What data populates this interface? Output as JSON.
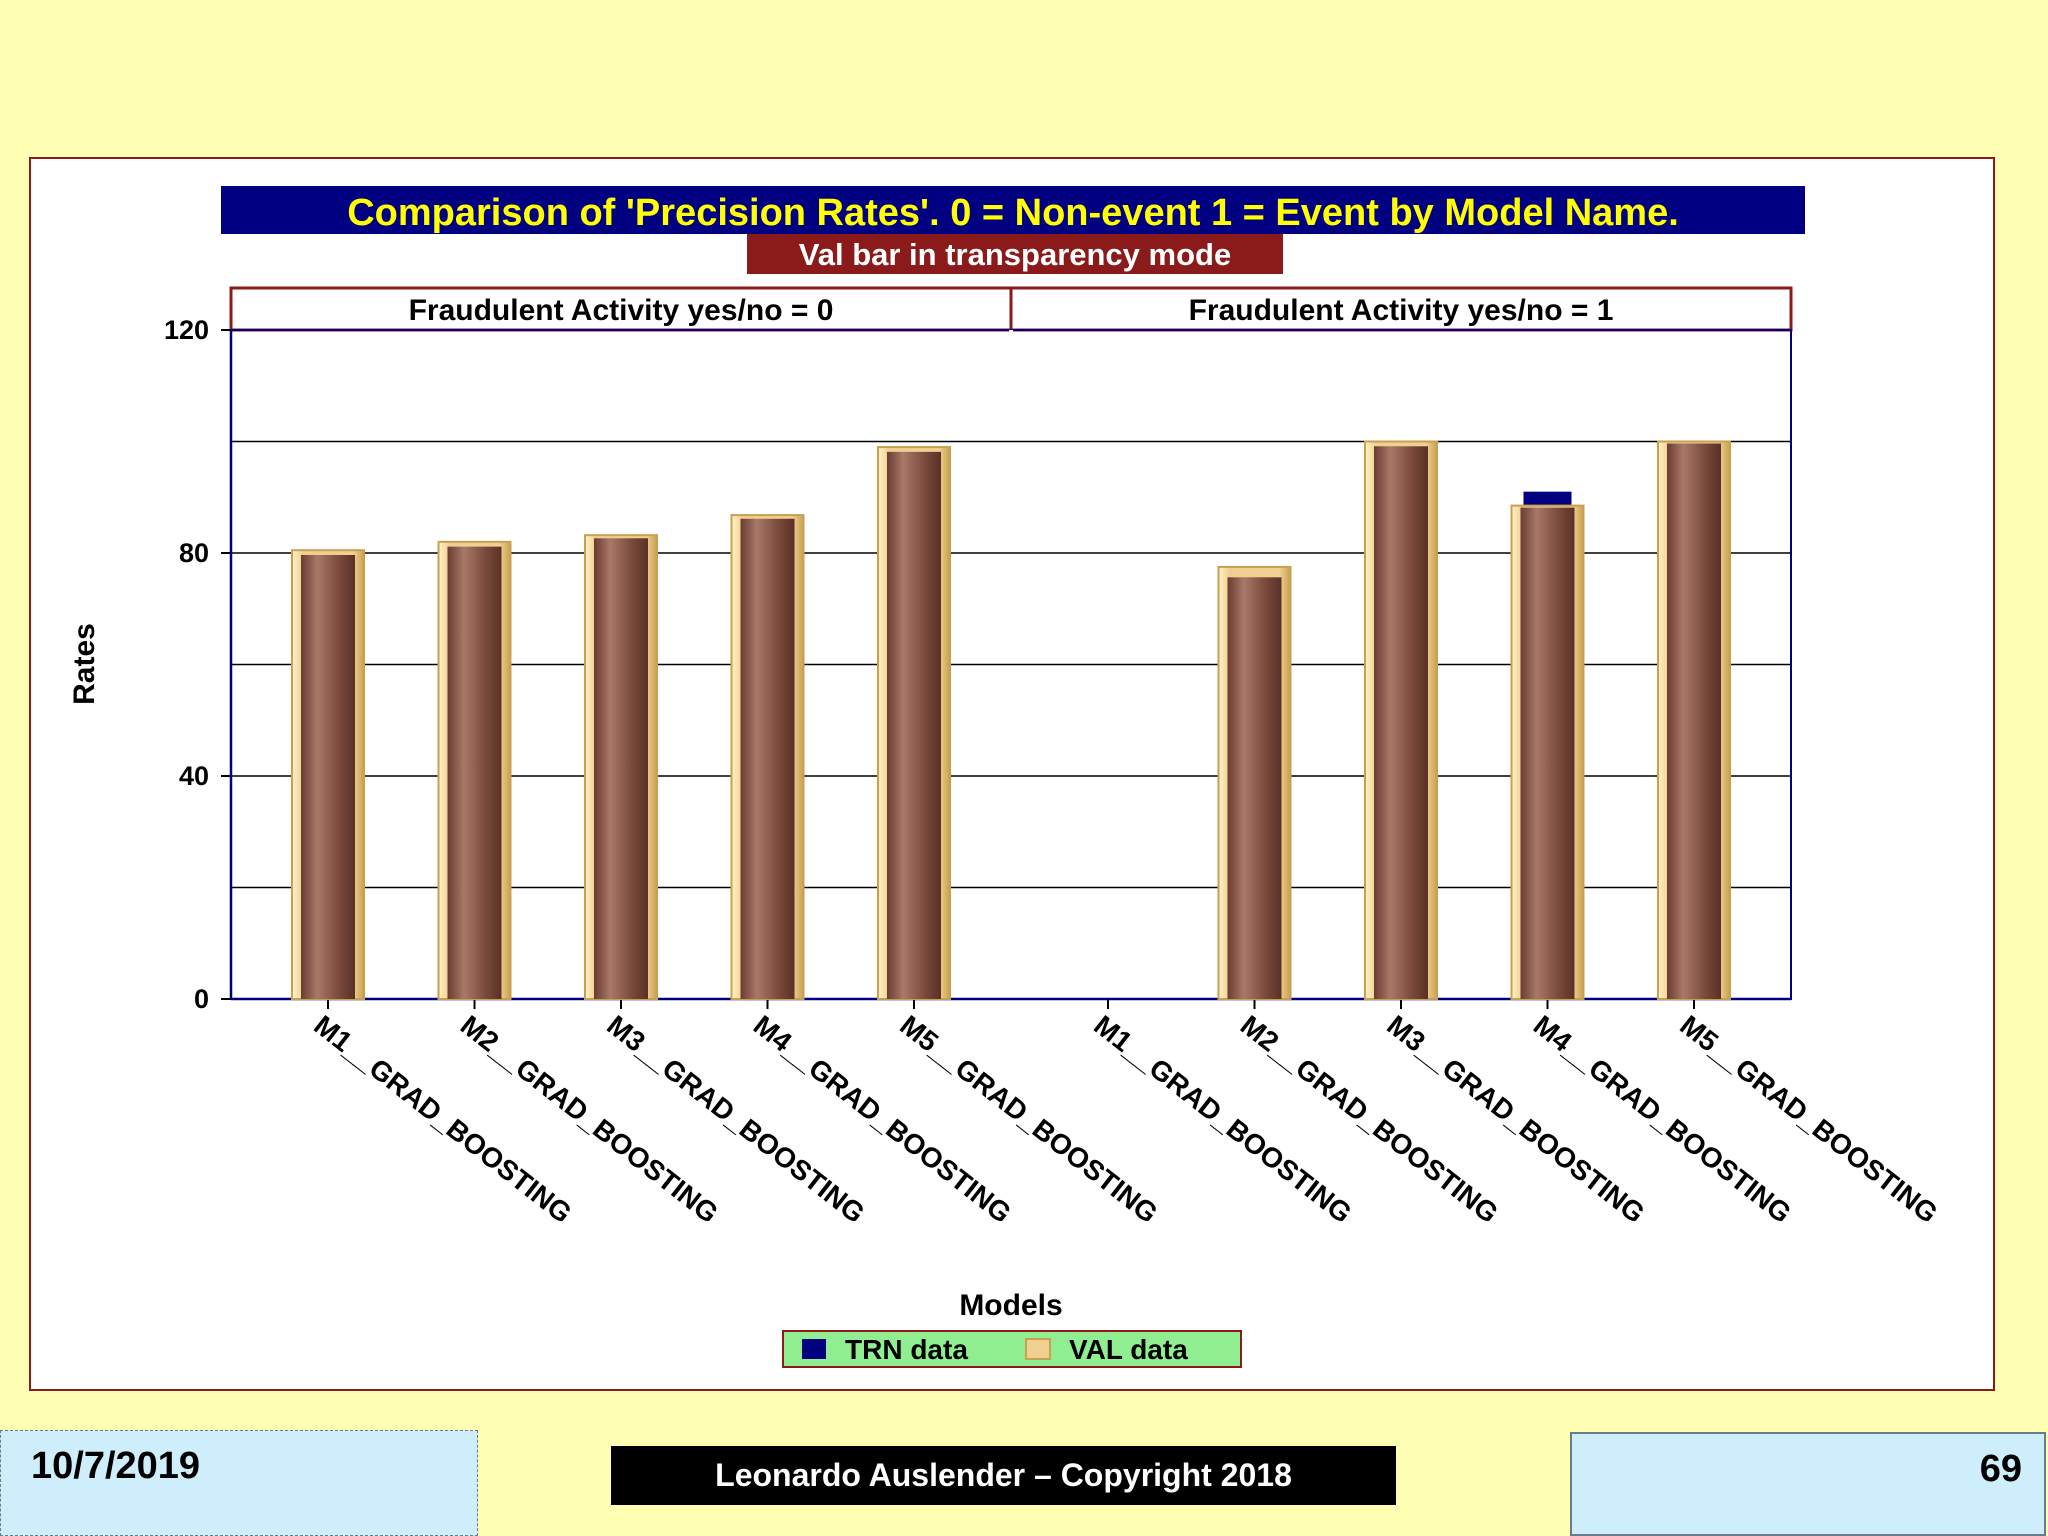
{
  "chart_data": {
    "type": "bar",
    "title": "Comparison of 'Precision Rates'. 0 = Non-event 1 = Event by Model Name.",
    "subtitle": "Val bar in transparency mode",
    "xlabel": "Models",
    "ylabel": "Rates",
    "ylim": [
      0,
      120
    ],
    "yticks": [
      0,
      40,
      80,
      120
    ],
    "grid": true,
    "categories": [
      "M1__GRAD_BOOSTING",
      "M2__GRAD_BOOSTING",
      "M3__GRAD_BOOSTING",
      "M4__GRAD_BOOSTING",
      "M5__GRAD_BOOSTING"
    ],
    "panels": [
      {
        "label": "Fraudulent Activity yes/no = 0",
        "series": [
          {
            "name": "TRN data",
            "values": [
              80,
              81.5,
              83,
              86.5,
              98.5
            ]
          },
          {
            "name": "VAL data",
            "values": [
              80.5,
              82,
              83.2,
              86.8,
              99
            ]
          }
        ]
      },
      {
        "label": "Fraudulent Activity yes/no = 1",
        "series": [
          {
            "name": "TRN data",
            "values": [
              0,
              76,
              99.5,
              91,
              100
            ]
          },
          {
            "name": "VAL data",
            "values": [
              0,
              77.5,
              100,
              88.5,
              100
            ]
          }
        ]
      }
    ],
    "legend": {
      "position": "bottom",
      "entries": [
        "TRN data",
        "VAL data"
      ]
    },
    "colors": {
      "trn_inner": "#7a4a3c",
      "trn_highlight": "#a87868",
      "trn_full": "#000080",
      "val_fill": "#f0d090",
      "val_edge": "#c8a050",
      "title_bg": "#000080",
      "title_fg": "#ffff00",
      "subtitle_bg": "#8b1a1a",
      "subtitle_fg": "#ffffff",
      "legend_bg": "#90ee90",
      "panel_border": "#8b1a1a",
      "axis_color": "#000080"
    }
  },
  "footer": {
    "date": "10/7/2019",
    "copyright": "Leonardo Auslender – Copyright 2018",
    "page_number": "69"
  }
}
